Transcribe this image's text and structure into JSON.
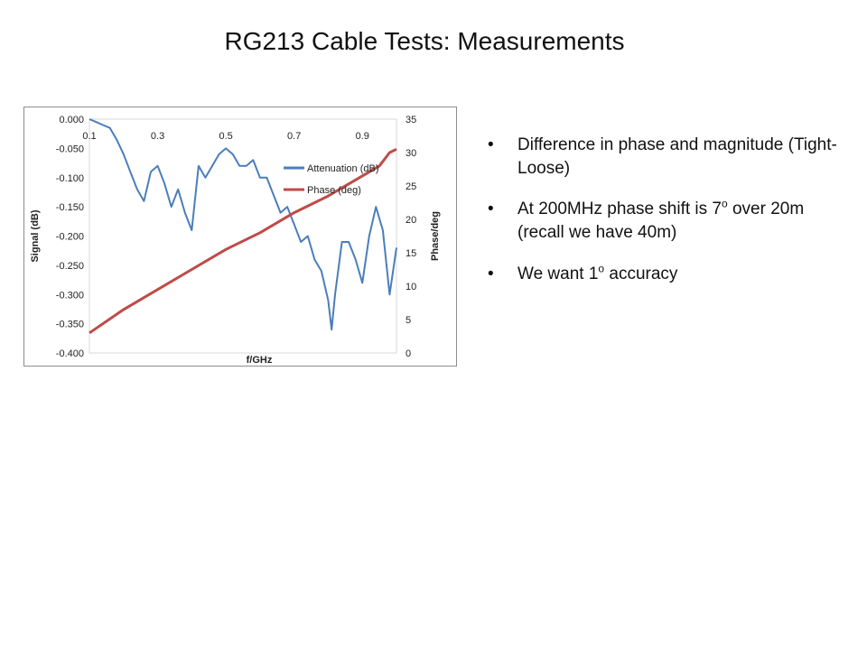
{
  "slide": {
    "title": "RG213 Cable Tests: Measurements"
  },
  "bullets": [
    {
      "symbol": "•",
      "parts": [
        "Difference in phase and magnitude (Tight-Loose)"
      ]
    },
    {
      "symbol": "•",
      "parts": [
        "At 200MHz phase shift is 7",
        "o",
        " over 20m (recall we have 40m)"
      ]
    },
    {
      "symbol": "•",
      "parts": [
        "We want 1",
        "o",
        " accuracy"
      ]
    }
  ],
  "colors": {
    "attenuation": "#4a7ebb",
    "phase": "#be4b48",
    "plot_area": "#ffffff",
    "frame_background": "#ffffff"
  },
  "chart_data": {
    "type": "line",
    "xlabel": "f/GHz",
    "ylabel_left": "Signal (dB)",
    "ylabel_right": "Phase/deg",
    "x_range": [
      0.1,
      1.0
    ],
    "y_left_range": [
      -0.4,
      0.0
    ],
    "y_right_range": [
      0,
      35
    ],
    "x_ticks": [
      "0.1",
      "0.3",
      "0.5",
      "0.7",
      "0.9"
    ],
    "x_tick_values": [
      0.1,
      0.3,
      0.5,
      0.7,
      0.9
    ],
    "y_left_ticks": [
      "0.000",
      "-0.050",
      "-0.100",
      "-0.150",
      "-0.200",
      "-0.250",
      "-0.300",
      "-0.350",
      "-0.400"
    ],
    "y_left_tick_values": [
      0.0,
      -0.05,
      -0.1,
      -0.15,
      -0.2,
      -0.25,
      -0.3,
      -0.35,
      -0.4
    ],
    "y_right_ticks": [
      "35",
      "30",
      "25",
      "20",
      "15",
      "10",
      "5",
      "0"
    ],
    "y_right_tick_values": [
      35,
      30,
      25,
      20,
      15,
      10,
      5,
      0
    ],
    "grid": false,
    "legend_position": "right",
    "series": [
      {
        "name": "Attenuation (dB)",
        "axis": "left",
        "x": [
          0.1,
          0.12,
          0.14,
          0.16,
          0.18,
          0.2,
          0.22,
          0.24,
          0.26,
          0.28,
          0.3,
          0.32,
          0.34,
          0.36,
          0.38,
          0.4,
          0.42,
          0.44,
          0.46,
          0.48,
          0.5,
          0.52,
          0.54,
          0.56,
          0.58,
          0.6,
          0.62,
          0.64,
          0.66,
          0.68,
          0.7,
          0.72,
          0.74,
          0.76,
          0.78,
          0.8,
          0.81,
          0.82,
          0.84,
          0.86,
          0.88,
          0.9,
          0.92,
          0.94,
          0.96,
          0.98,
          1.0
        ],
        "values": [
          0.0,
          -0.005,
          -0.01,
          -0.015,
          -0.035,
          -0.06,
          -0.09,
          -0.12,
          -0.14,
          -0.09,
          -0.08,
          -0.11,
          -0.15,
          -0.12,
          -0.16,
          -0.19,
          -0.08,
          -0.1,
          -0.08,
          -0.06,
          -0.05,
          -0.06,
          -0.08,
          -0.08,
          -0.07,
          -0.1,
          -0.1,
          -0.13,
          -0.16,
          -0.15,
          -0.18,
          -0.21,
          -0.2,
          -0.24,
          -0.26,
          -0.31,
          -0.36,
          -0.3,
          -0.21,
          -0.21,
          -0.24,
          -0.28,
          -0.2,
          -0.15,
          -0.19,
          -0.3,
          -0.22
        ]
      },
      {
        "name": "Phase (deg)",
        "axis": "right",
        "x": [
          0.1,
          0.2,
          0.3,
          0.4,
          0.5,
          0.6,
          0.7,
          0.8,
          0.9,
          0.95,
          0.98,
          1.0
        ],
        "values": [
          3.0,
          6.5,
          9.5,
          12.5,
          15.5,
          18.0,
          21.0,
          23.5,
          26.5,
          28.0,
          30.0,
          30.5
        ]
      }
    ]
  }
}
